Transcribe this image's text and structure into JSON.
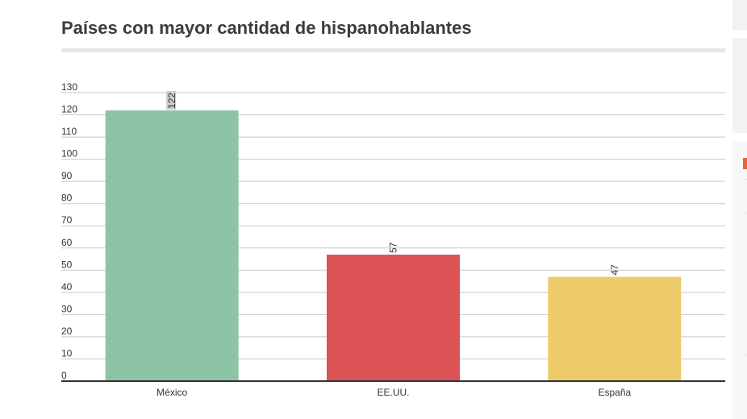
{
  "chart_data": {
    "type": "bar",
    "title": "Países con mayor cantidad de hispanohablantes",
    "categories": [
      "México",
      "EE.UU.",
      "España"
    ],
    "values": [
      122,
      57,
      47
    ],
    "ylim": [
      0,
      130
    ],
    "yticks": [
      0,
      10,
      20,
      30,
      40,
      50,
      60,
      70,
      80,
      90,
      100,
      110,
      120,
      130
    ],
    "grid": true,
    "legend": "none",
    "colors": [
      "#8ec3a7",
      "#dc5356",
      "#eecb6a"
    ],
    "data_labels": [
      "122",
      "57",
      "47"
    ]
  }
}
